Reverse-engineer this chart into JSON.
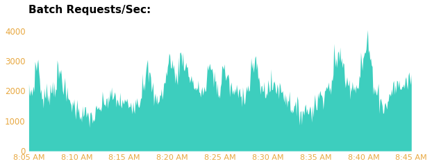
{
  "title": "Batch Requests/Sec:",
  "title_fontsize": 11,
  "title_fontweight": "bold",
  "title_color": "#000000",
  "fill_color": "#3DCEBE",
  "background_color": "#ffffff",
  "ylim": [
    0,
    4400
  ],
  "yticks": [
    0,
    1000,
    2000,
    3000,
    4000
  ],
  "xtick_labels": [
    "8:05 AM",
    "8:10 AM",
    "8:15 AM",
    "8:20 AM",
    "8:25 AM",
    "8:30 AM",
    "8:35 AM",
    "8:40 AM",
    "8:45 AM"
  ],
  "n_points": 500,
  "seed": 7,
  "ytick_color": "#e8a840",
  "xtick_color": "#e8a840"
}
